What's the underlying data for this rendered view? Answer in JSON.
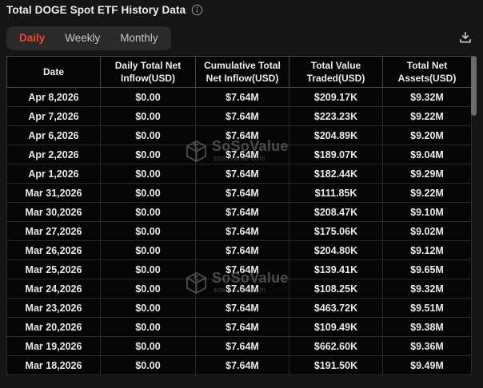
{
  "header": {
    "title": "Total DOGE Spot ETF History Data",
    "info_icon": "info-circle-icon"
  },
  "tabs": {
    "items": [
      {
        "label": "Daily",
        "active": true
      },
      {
        "label": "Weekly",
        "active": false
      },
      {
        "label": "Monthly",
        "active": false
      }
    ]
  },
  "toolbar": {
    "download_icon": "download-icon"
  },
  "table": {
    "columns": [
      "Date",
      "Daily Total Net Inflow(USD)",
      "Cumulative Total Net Inflow(USD)",
      "Total Value Traded(USD)",
      "Total Net Assets(USD)"
    ],
    "rows": [
      [
        "Apr 8,2026",
        "$0.00",
        "$7.64M",
        "$209.17K",
        "$9.32M"
      ],
      [
        "Apr 7,2026",
        "$0.00",
        "$7.64M",
        "$223.23K",
        "$9.22M"
      ],
      [
        "Apr 6,2026",
        "$0.00",
        "$7.64M",
        "$204.89K",
        "$9.20M"
      ],
      [
        "Apr 2,2026",
        "$0.00",
        "$7.64M",
        "$189.07K",
        "$9.04M"
      ],
      [
        "Apr 1,2026",
        "$0.00",
        "$7.64M",
        "$182.44K",
        "$9.29M"
      ],
      [
        "Mar 31,2026",
        "$0.00",
        "$7.64M",
        "$111.85K",
        "$9.22M"
      ],
      [
        "Mar 30,2026",
        "$0.00",
        "$7.64M",
        "$208.47K",
        "$9.10M"
      ],
      [
        "Mar 27,2026",
        "$0.00",
        "$7.64M",
        "$175.06K",
        "$9.02M"
      ],
      [
        "Mar 26,2026",
        "$0.00",
        "$7.64M",
        "$204.80K",
        "$9.12M"
      ],
      [
        "Mar 25,2026",
        "$0.00",
        "$7.64M",
        "$139.41K",
        "$9.65M"
      ],
      [
        "Mar 24,2026",
        "$0.00",
        "$7.64M",
        "$108.25K",
        "$9.32M"
      ],
      [
        "Mar 23,2026",
        "$0.00",
        "$7.64M",
        "$463.72K",
        "$9.51M"
      ],
      [
        "Mar 20,2026",
        "$0.00",
        "$7.64M",
        "$109.49K",
        "$9.38M"
      ],
      [
        "Mar 19,2026",
        "$0.00",
        "$7.64M",
        "$662.60K",
        "$9.36M"
      ],
      [
        "Mar 18,2026",
        "$0.00",
        "$7.64M",
        "$191.50K",
        "$9.49M"
      ]
    ]
  },
  "watermark": {
    "brand": "SoSoValue",
    "domain": "sosovalue.com",
    "logo_icon": "sosovalue-cube-icon"
  },
  "colors": {
    "accent": "#e8472a",
    "page_bg": "#151515",
    "table_bg": "#060606",
    "tab_bar_bg": "#2a2a2b"
  }
}
